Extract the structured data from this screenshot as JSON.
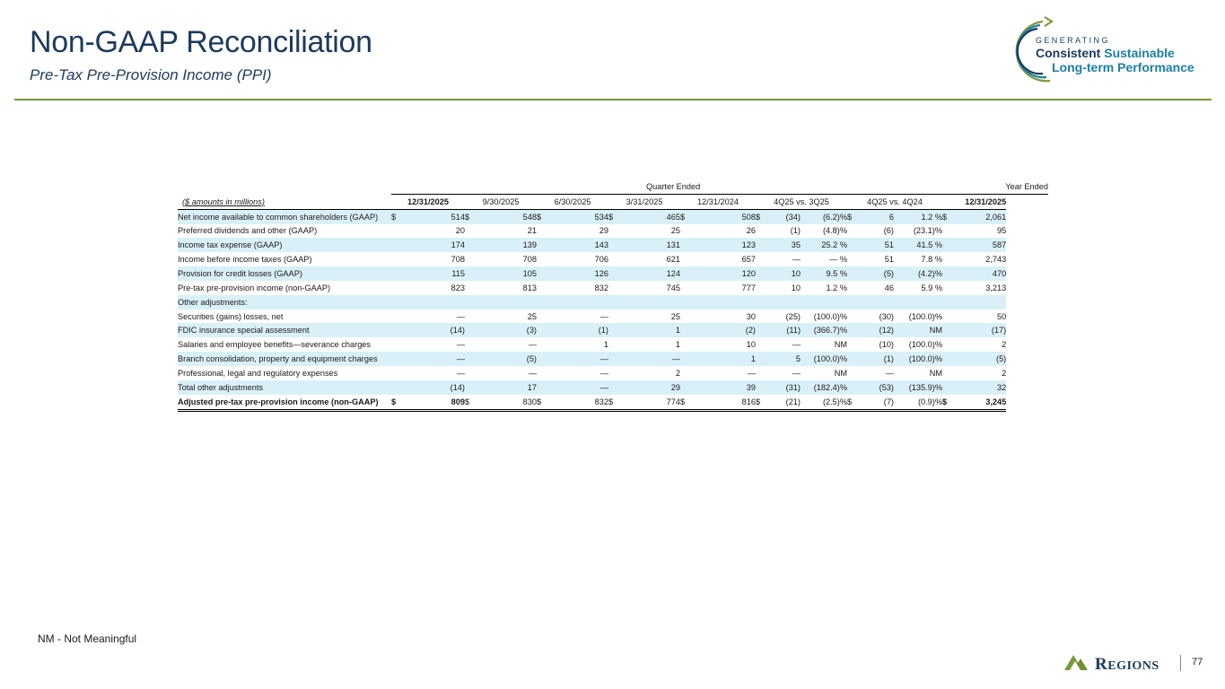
{
  "header": {
    "title": "Non-GAAP Reconciliation",
    "subtitle": "Pre-Tax Pre-Provision Income (PPI)"
  },
  "badge": {
    "generating": "GENERATING",
    "consistent": "Consistent",
    "sustainable": "Sustainable",
    "long_term": "Long-term Performance"
  },
  "table": {
    "group_quarter": "Quarter Ended",
    "group_year": "Year Ended",
    "units_label": "($ amounts in millions)",
    "columns": [
      "12/31/2025",
      "9/30/2025",
      "6/30/2025",
      "3/31/2025",
      "12/31/2024",
      "4Q25 vs. 3Q25",
      "4Q25 vs. 4Q24",
      "12/31/2025"
    ],
    "rows": [
      {
        "label": "Net income available to common shareholders (GAAP)",
        "c1": "514",
        "c2": "548",
        "c3": "534",
        "c4": "465",
        "c5": "508",
        "d1": "(34)",
        "p1": "(6.2)%",
        "d2": "6",
        "p2": "1.2 %",
        "y": "2,061"
      },
      {
        "label": "Preferred dividends and other (GAAP)",
        "c1": "20",
        "c2": "21",
        "c3": "29",
        "c4": "25",
        "c5": "26",
        "d1": "(1)",
        "p1": "(4.8)%",
        "d2": "(6)",
        "p2": "(23.1)%",
        "y": "95"
      },
      {
        "label": "Income tax expense (GAAP)",
        "c1": "174",
        "c2": "139",
        "c3": "143",
        "c4": "131",
        "c5": "123",
        "d1": "35",
        "p1": "25.2 %",
        "d2": "51",
        "p2": "41.5 %",
        "y": "587"
      },
      {
        "label": "Income before income taxes (GAAP)",
        "c1": "708",
        "c2": "708",
        "c3": "706",
        "c4": "621",
        "c5": "657",
        "d1": "—",
        "p1": "— %",
        "d2": "51",
        "p2": "7.8 %",
        "y": "2,743"
      },
      {
        "label": "Provision for credit losses (GAAP)",
        "c1": "115",
        "c2": "105",
        "c3": "126",
        "c4": "124",
        "c5": "120",
        "d1": "10",
        "p1": "9.5 %",
        "d2": "(5)",
        "p2": "(4.2)%",
        "y": "470"
      },
      {
        "label": "Pre-tax pre-provision income (non-GAAP)",
        "c1": "823",
        "c2": "813",
        "c3": "832",
        "c4": "745",
        "c5": "777",
        "d1": "10",
        "p1": "1.2 %",
        "d2": "46",
        "p2": "5.9 %",
        "y": "3,213"
      },
      {
        "label": "Other adjustments:",
        "c1": "",
        "c2": "",
        "c3": "",
        "c4": "",
        "c5": "",
        "d1": "",
        "p1": "",
        "d2": "",
        "p2": "",
        "y": ""
      },
      {
        "label": "Securities (gains) losses, net",
        "c1": "—",
        "c2": "25",
        "c3": "—",
        "c4": "25",
        "c5": "30",
        "d1": "(25)",
        "p1": "(100.0)%",
        "d2": "(30)",
        "p2": "(100.0)%",
        "y": "50"
      },
      {
        "label": "FDIC insurance special assessment",
        "c1": "(14)",
        "c2": "(3)",
        "c3": "(1)",
        "c4": "1",
        "c5": "(2)",
        "d1": "(11)",
        "p1": "(366.7)%",
        "d2": "(12)",
        "p2": "NM",
        "y": "(17)"
      },
      {
        "label": "Salaries and employee benefits—severance charges",
        "c1": "—",
        "c2": "—",
        "c3": "1",
        "c4": "1",
        "c5": "10",
        "d1": "—",
        "p1": "NM",
        "d2": "(10)",
        "p2": "(100.0)%",
        "y": "2"
      },
      {
        "label": "Branch consolidation, property and equipment charges",
        "c1": "—",
        "c2": "(5)",
        "c3": "—",
        "c4": "—",
        "c5": "1",
        "d1": "5",
        "p1": "(100.0)%",
        "d2": "(1)",
        "p2": "(100.0)%",
        "y": "(5)"
      },
      {
        "label": "Professional, legal and regulatory expenses",
        "c1": "—",
        "c2": "—",
        "c3": "—",
        "c4": "2",
        "c5": "—",
        "d1": "—",
        "p1": "NM",
        "d2": "—",
        "p2": "NM",
        "y": "2"
      },
      {
        "label": "Total other adjustments",
        "c1": "(14)",
        "c2": "17",
        "c3": "—",
        "c4": "29",
        "c5": "39",
        "d1": "(31)",
        "p1": "(182.4)%",
        "d2": "(53)",
        "p2": "(135.9)%",
        "y": "32"
      },
      {
        "label": "Adjusted pre-tax pre-provision income (non-GAAP)",
        "c1": "809",
        "c2": "830",
        "c3": "832",
        "c4": "774",
        "c5": "816",
        "d1": "(21)",
        "p1": "(2.5)%",
        "d2": "(7)",
        "p2": "(0.9)%",
        "y": "3,245"
      }
    ],
    "currency_symbol": "$"
  },
  "footer": {
    "footnote": "NM - Not Meaningful",
    "brand": "Regions",
    "page_number": "77"
  },
  "colors": {
    "title": "#1d3a5c",
    "accent_blue": "#1e7ea3",
    "rule_green": "#7a9a3a",
    "row_shade": "#daf0f8",
    "logo_green": "#7a9a3a"
  }
}
